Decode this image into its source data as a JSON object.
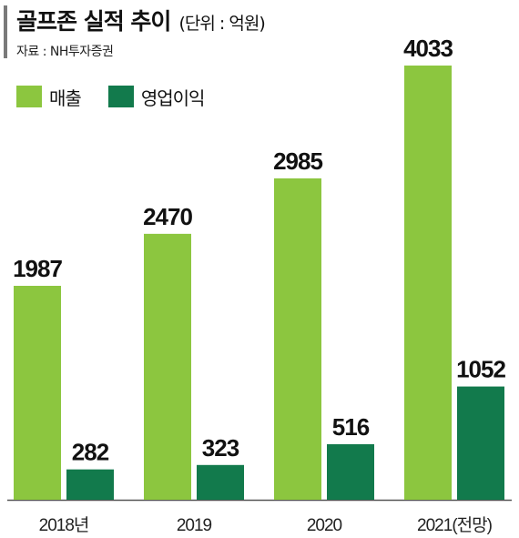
{
  "header": {
    "title": "골프존 실적 추이",
    "unit": "(단위 : 억원)",
    "source": "자료 : NH투자증권"
  },
  "colors": {
    "sales": "#8cc63f",
    "operating_profit": "#127a4c",
    "axis": "#555555"
  },
  "chart_data": {
    "type": "bar",
    "title": "골프존 실적 추이",
    "unit": "(단위 : 억원)",
    "categories": [
      "2018년",
      "2019",
      "2020",
      "2021(전망)"
    ],
    "series": [
      {
        "name": "매출",
        "values": [
          1987,
          2470,
          2985,
          4033
        ]
      },
      {
        "name": "영업이익",
        "values": [
          282,
          323,
          516,
          1052
        ]
      }
    ],
    "ylim": [
      0,
      4033
    ],
    "grid": false,
    "legend": "top-left"
  }
}
